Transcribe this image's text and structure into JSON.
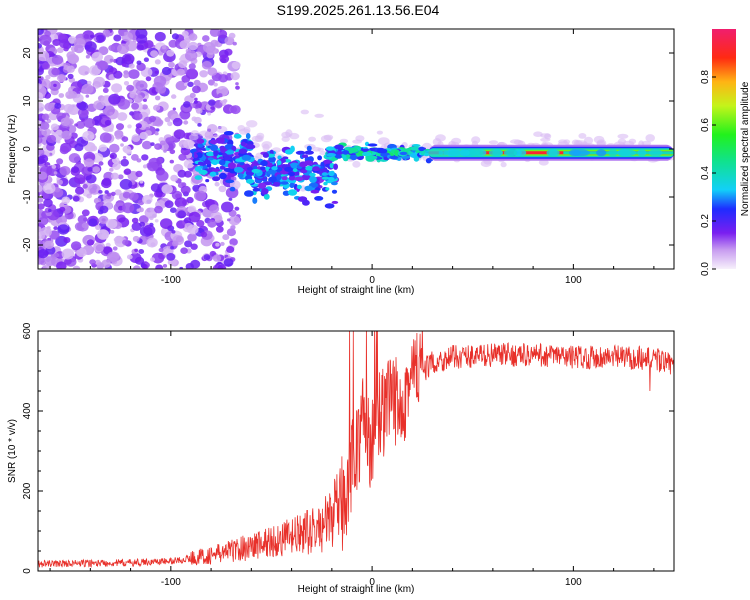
{
  "title": "S199.2025.261.13.56.E04",
  "chart_data": [
    {
      "type": "heatmap",
      "xlabel": "Height of straight line (km)",
      "ylabel": "Frequency (Hz)",
      "xlim": [
        -166,
        150
      ],
      "ylim": [
        -25,
        25
      ],
      "xticks": [
        -100,
        0,
        100
      ],
      "yticks": [
        -20,
        -10,
        0,
        10,
        20
      ],
      "xtick_labels": [
        "-100",
        "0",
        "100"
      ],
      "ytick_labels": [
        "-20",
        "-10",
        "0",
        "10",
        "20"
      ],
      "colorbar": {
        "label": "Normalized spectral amplitude",
        "range": [
          0,
          1
        ],
        "ticks": [
          0.0,
          0.2,
          0.4,
          0.6,
          0.8
        ],
        "tick_labels": [
          "0.0",
          "0.2",
          "0.4",
          "0.6",
          "0.8"
        ]
      },
      "description_points": [
        {
          "x_range": [
            -166,
            -85
          ],
          "amplitude": 0.15,
          "freq_spread": 25
        },
        {
          "x_range": [
            -85,
            -20
          ],
          "amplitude": 0.3,
          "freq_spread": 8
        },
        {
          "x_range": [
            -20,
            30
          ],
          "amplitude": 0.5,
          "freq_spread": 2
        },
        {
          "x_range": [
            28,
            95
          ],
          "amplitude": 0.95,
          "freq_spread": 1
        },
        {
          "x_range": [
            95,
            150
          ],
          "amplitude": 0.4,
          "freq_spread": 1
        }
      ]
    },
    {
      "type": "line",
      "xlabel": "Height of straight line (km)",
      "ylabel": "SNR (10 * v/v)",
      "xlim": [
        -166,
        150
      ],
      "ylim": [
        0,
        600
      ],
      "xticks": [
        -100,
        0,
        100
      ],
      "yticks": [
        0,
        200,
        400,
        600
      ],
      "xtick_labels": [
        "-100",
        "0",
        "100"
      ],
      "ytick_labels": [
        "0",
        "200",
        "400",
        "600"
      ],
      "color": "#e8302a",
      "series": [
        {
          "name": "SNR",
          "x": [
            -166,
            -120,
            -100,
            -80,
            -60,
            -40,
            -25,
            -15,
            -10,
            -5,
            0,
            5,
            10,
            15,
            20,
            25,
            30,
            40,
            60,
            80,
            100,
            120,
            140,
            150
          ],
          "y": [
            15,
            18,
            22,
            35,
            55,
            75,
            95,
            150,
            250,
            350,
            300,
            380,
            400,
            430,
            470,
            500,
            520,
            535,
            540,
            540,
            535,
            535,
            530,
            515
          ]
        }
      ]
    }
  ]
}
